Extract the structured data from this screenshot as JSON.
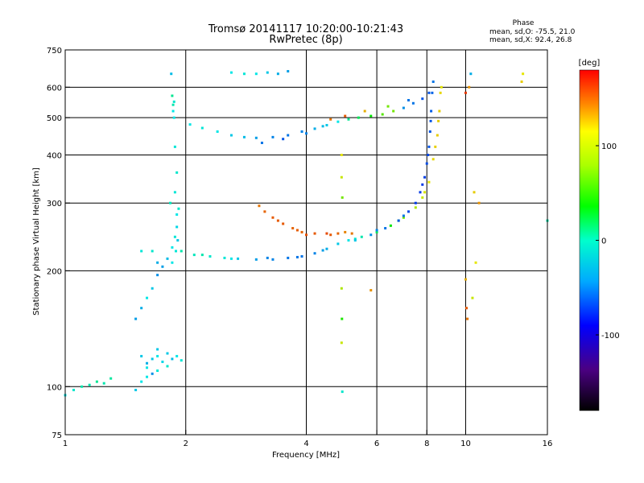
{
  "chart_data": {
    "type": "scatter",
    "title": "Tromsø 20141117 10:20:00-10:21:43",
    "subtitle": "RwPretec (8p)",
    "xlabel": "Frequency [MHz]",
    "ylabel": "Stationary phase Virtual Height [km]",
    "x_scale": "log",
    "y_scale": "log",
    "xlim": [
      1,
      16
    ],
    "ylim": [
      75,
      750
    ],
    "x_ticks": [
      1,
      2,
      4,
      6,
      8,
      10,
      16
    ],
    "y_ticks": [
      75,
      100,
      200,
      300,
      400,
      500,
      600,
      750
    ],
    "x_grid": [
      2,
      4,
      6,
      8,
      10
    ],
    "y_grid": [
      100,
      200,
      300,
      400,
      500,
      600
    ],
    "grid": true,
    "phase_stats": {
      "header": "Phase",
      "line_o": "mean, sd,O: -75.5, 21.0",
      "line_x": "mean, sd,X:  92.4, 26.8"
    },
    "colorbar": {
      "label": "[deg]",
      "range": [
        -180,
        180
      ],
      "ticks": [
        -100,
        0,
        100
      ],
      "placement": "right"
    },
    "series": [
      {
        "points": [
          [
            1.0,
            95,
            -60
          ],
          [
            1.05,
            98,
            -50
          ],
          [
            1.1,
            100,
            -40
          ],
          [
            1.15,
            101,
            -40
          ],
          [
            1.2,
            103,
            -30
          ],
          [
            1.25,
            102,
            -40
          ],
          [
            1.3,
            105,
            -35
          ]
        ]
      },
      {
        "points": [
          [
            1.5,
            98,
            -70
          ],
          [
            1.55,
            103,
            -60
          ],
          [
            1.6,
            106,
            -60
          ],
          [
            1.55,
            120,
            -70
          ],
          [
            1.6,
            115,
            -80
          ],
          [
            1.65,
            118,
            -70
          ],
          [
            1.7,
            120,
            -60
          ],
          [
            1.75,
            116,
            -65
          ],
          [
            1.8,
            122,
            -70
          ],
          [
            1.85,
            118,
            -75
          ],
          [
            1.9,
            120,
            -60
          ],
          [
            1.95,
            117,
            -55
          ],
          [
            1.6,
            112,
            -60
          ],
          [
            1.7,
            110,
            -55
          ],
          [
            1.8,
            113,
            -50
          ],
          [
            1.65,
            108,
            -90
          ],
          [
            1.7,
            125,
            -70
          ]
        ]
      },
      {
        "points": [
          [
            1.55,
            225,
            -55
          ],
          [
            1.65,
            225,
            -50
          ],
          [
            1.7,
            210,
            -80
          ],
          [
            1.75,
            205,
            -85
          ],
          [
            1.8,
            215,
            -75
          ],
          [
            1.7,
            195,
            -90
          ],
          [
            1.65,
            180,
            -70
          ],
          [
            1.6,
            170,
            -60
          ],
          [
            1.55,
            160,
            -80
          ],
          [
            1.5,
            150,
            -85
          ]
        ]
      },
      {
        "points": [
          [
            1.85,
            230,
            -60
          ],
          [
            1.88,
            245,
            -55
          ],
          [
            1.9,
            260,
            -65
          ],
          [
            1.92,
            290,
            -50
          ],
          [
            1.88,
            320,
            -55
          ],
          [
            1.9,
            360,
            -50
          ],
          [
            1.88,
            420,
            -55
          ],
          [
            1.87,
            500,
            -60
          ],
          [
            1.86,
            540,
            -40
          ],
          [
            1.85,
            570,
            -30
          ],
          [
            1.87,
            550,
            -50
          ],
          [
            1.86,
            520,
            -60
          ],
          [
            1.84,
            650,
            -75
          ],
          [
            1.9,
            280,
            -60
          ],
          [
            1.91,
            240,
            -70
          ],
          [
            1.89,
            225,
            -55
          ],
          [
            1.85,
            210,
            -60
          ],
          [
            1.83,
            300,
            -45
          ]
        ]
      },
      {
        "points": [
          [
            1.95,
            225,
            -40
          ],
          [
            2.1,
            220,
            -45
          ],
          [
            2.3,
            218,
            -50
          ],
          [
            2.5,
            216,
            -55
          ],
          [
            2.7,
            215,
            -70
          ],
          [
            3.0,
            214,
            -85
          ],
          [
            3.3,
            214,
            -95
          ],
          [
            3.6,
            216,
            -100
          ],
          [
            3.9,
            218,
            -100
          ],
          [
            4.2,
            222,
            -95
          ],
          [
            4.5,
            228,
            -80
          ],
          [
            4.8,
            235,
            -70
          ],
          [
            5.1,
            240,
            -60
          ],
          [
            5.5,
            245,
            -40
          ],
          [
            6.0,
            252,
            -10
          ],
          [
            6.5,
            262,
            20
          ],
          [
            7.0,
            275,
            60
          ],
          [
            7.5,
            292,
            80
          ],
          [
            7.8,
            310,
            90
          ],
          [
            8.1,
            340,
            100
          ],
          [
            8.3,
            390,
            105
          ],
          [
            8.5,
            450,
            110
          ],
          [
            8.6,
            520,
            110
          ],
          [
            8.65,
            580,
            105
          ],
          [
            2.2,
            220,
            -40
          ],
          [
            2.6,
            215,
            -60
          ],
          [
            3.2,
            216,
            -95
          ],
          [
            3.8,
            217,
            -100
          ],
          [
            4.4,
            226,
            -85
          ],
          [
            5.3,
            242,
            -50
          ],
          [
            6.8,
            270,
            50
          ],
          [
            7.9,
            320,
            95
          ],
          [
            8.4,
            420,
            108
          ],
          [
            8.55,
            490,
            110
          ],
          [
            8.7,
            600,
            100
          ]
        ]
      },
      {
        "points": [
          [
            5.3,
            240,
            -70
          ],
          [
            5.8,
            248,
            -90
          ],
          [
            6.3,
            258,
            -100
          ],
          [
            6.8,
            270,
            -110
          ],
          [
            7.2,
            285,
            -115
          ],
          [
            7.5,
            300,
            -120
          ],
          [
            7.7,
            320,
            -120
          ],
          [
            7.9,
            350,
            -118
          ],
          [
            8.0,
            380,
            -115
          ],
          [
            8.1,
            420,
            -110
          ],
          [
            8.15,
            460,
            -110
          ],
          [
            8.2,
            520,
            -108
          ],
          [
            8.25,
            580,
            -105
          ],
          [
            8.3,
            620,
            -100
          ],
          [
            7.0,
            278,
            -100
          ],
          [
            6.0,
            255,
            -95
          ],
          [
            7.8,
            335,
            -120
          ],
          [
            8.05,
            400,
            -115
          ],
          [
            8.18,
            490,
            -110
          ]
        ]
      },
      {
        "points": [
          [
            3.05,
            295,
            140
          ],
          [
            3.15,
            285,
            145
          ],
          [
            3.3,
            275,
            150
          ],
          [
            3.5,
            265,
            150
          ],
          [
            3.7,
            258,
            145
          ],
          [
            3.9,
            252,
            145
          ],
          [
            4.2,
            250,
            150
          ],
          [
            4.5,
            250,
            155
          ],
          [
            4.8,
            250,
            145
          ],
          [
            5.0,
            252,
            135
          ],
          [
            5.2,
            250,
            140
          ],
          [
            3.4,
            270,
            150
          ],
          [
            3.8,
            255,
            148
          ],
          [
            4.0,
            248,
            152
          ],
          [
            4.6,
            248,
            150
          ]
        ]
      },
      {
        "points": [
          [
            2.05,
            480,
            -60
          ],
          [
            2.2,
            470,
            -55
          ],
          [
            2.4,
            460,
            -60
          ],
          [
            2.6,
            450,
            -70
          ],
          [
            2.8,
            445,
            -75
          ],
          [
            3.0,
            443,
            -85
          ],
          [
            3.3,
            445,
            -95
          ],
          [
            3.6,
            450,
            -100
          ],
          [
            3.9,
            460,
            -95
          ],
          [
            4.2,
            468,
            -80
          ],
          [
            4.5,
            478,
            -70
          ],
          [
            4.8,
            488,
            -60
          ],
          [
            5.1,
            495,
            -30
          ],
          [
            5.4,
            500,
            -10
          ],
          [
            5.8,
            505,
            20
          ],
          [
            6.2,
            510,
            50
          ],
          [
            6.6,
            520,
            60
          ],
          [
            7.0,
            530,
            -90
          ],
          [
            7.4,
            545,
            -100
          ],
          [
            7.8,
            560,
            -110
          ],
          [
            8.1,
            580,
            -110
          ],
          [
            3.1,
            430,
            -100
          ],
          [
            3.5,
            440,
            -110
          ],
          [
            4.0,
            455,
            -95
          ],
          [
            4.4,
            475,
            -75
          ],
          [
            4.6,
            495,
            140
          ],
          [
            5.0,
            505,
            150
          ],
          [
            5.6,
            520,
            120
          ],
          [
            6.4,
            535,
            60
          ],
          [
            7.2,
            555,
            -100
          ]
        ]
      },
      {
        "points": [
          [
            2.6,
            655,
            -60
          ],
          [
            2.8,
            650,
            -55
          ],
          [
            3.0,
            650,
            -60
          ],
          [
            3.2,
            655,
            -70
          ],
          [
            3.4,
            650,
            -80
          ],
          [
            3.6,
            660,
            -85
          ]
        ]
      },
      {
        "points": [
          [
            4.9,
            400,
            100
          ],
          [
            4.9,
            350,
            90
          ],
          [
            4.92,
            310,
            60
          ],
          [
            4.9,
            180,
            80
          ],
          [
            4.91,
            150,
            30
          ],
          [
            4.9,
            130,
            90
          ],
          [
            4.92,
            97,
            -50
          ],
          [
            5.8,
            178,
            130
          ],
          [
            10.0,
            190,
            120
          ],
          [
            10.1,
            150,
            140
          ],
          [
            10.05,
            160,
            150
          ],
          [
            10.0,
            580,
            160
          ],
          [
            10.2,
            600,
            130
          ],
          [
            10.6,
            210,
            100
          ],
          [
            10.4,
            170,
            90
          ],
          [
            10.5,
            320,
            110
          ],
          [
            10.8,
            300,
            130
          ],
          [
            13.9,
            650,
            100
          ],
          [
            13.8,
            620,
            110
          ],
          [
            16.0,
            270,
            -40
          ],
          [
            10.3,
            650,
            -80
          ]
        ]
      }
    ]
  }
}
